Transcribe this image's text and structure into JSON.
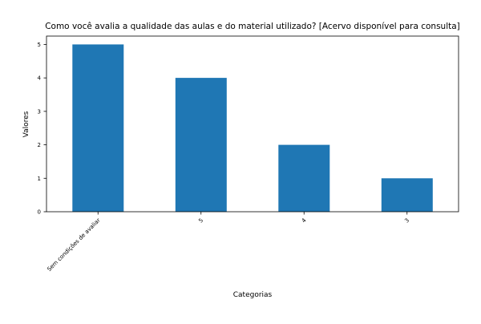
{
  "chart_data": {
    "type": "bar",
    "title": "Como você avalia a qualidade das aulas e do material utilizado? [Acervo disponível para consulta]",
    "xlabel": "Categorias",
    "ylabel": "Valores",
    "categories": [
      "Sem condições de avaliar",
      "5",
      "4",
      "3"
    ],
    "values": [
      5,
      4,
      2,
      1
    ],
    "ylim": [
      0,
      5.25
    ],
    "yticks": [
      "0",
      "1",
      "2",
      "3",
      "4",
      "5"
    ],
    "grid": false,
    "bar_color": "#1f77b4"
  }
}
